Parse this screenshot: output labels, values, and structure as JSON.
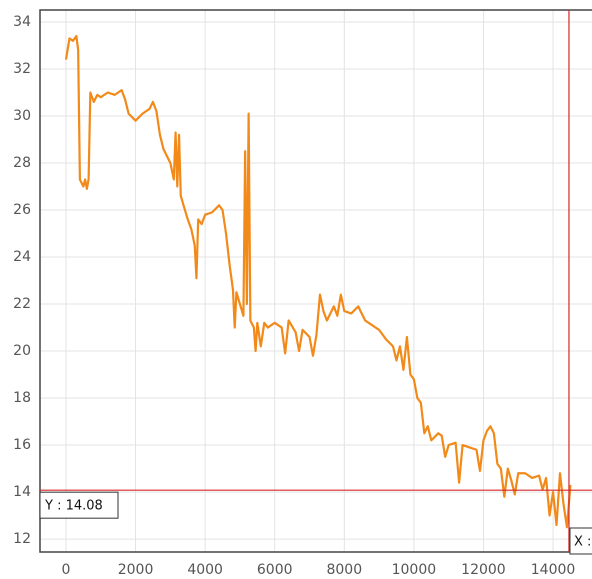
{
  "chart_data": {
    "type": "line",
    "color": "#f28a1a",
    "grid": true,
    "xlim": [
      -747,
      15120
    ],
    "ylim": [
      11.45,
      34.51
    ],
    "xticks": [
      0,
      2000,
      4000,
      6000,
      8000,
      10000,
      12000,
      14000
    ],
    "yticks": [
      12,
      14,
      16,
      18,
      20,
      22,
      24,
      26,
      28,
      30,
      32,
      34
    ],
    "x": [
      0,
      100,
      200,
      300,
      350,
      400,
      500,
      550,
      600,
      650,
      700,
      800,
      900,
      1000,
      1200,
      1400,
      1600,
      1700,
      1800,
      2000,
      2200,
      2400,
      2500,
      2600,
      2700,
      2800,
      2900,
      3000,
      3100,
      3150,
      3200,
      3250,
      3300,
      3400,
      3500,
      3600,
      3700,
      3750,
      3800,
      3900,
      4000,
      4200,
      4400,
      4500,
      4600,
      4700,
      4800,
      4850,
      4900,
      5000,
      5100,
      5150,
      5200,
      5250,
      5300,
      5400,
      5450,
      5500,
      5600,
      5700,
      5800,
      6000,
      6200,
      6300,
      6400,
      6600,
      6700,
      6800,
      7000,
      7100,
      7200,
      7300,
      7400,
      7500,
      7700,
      7800,
      7900,
      8000,
      8200,
      8400,
      8600,
      8800,
      9000,
      9200,
      9400,
      9500,
      9600,
      9700,
      9800,
      9900,
      10000,
      10100,
      10200,
      10300,
      10400,
      10500,
      10700,
      10800,
      10900,
      11000,
      11200,
      11300,
      11400,
      11600,
      11800,
      11900,
      12000,
      12100,
      12200,
      12300,
      12400,
      12500,
      12600,
      12700,
      12800,
      12900,
      13000,
      13200,
      13400,
      13600,
      13700,
      13800,
      13900,
      14000,
      14100,
      14200,
      14300,
      14400,
      14500
    ],
    "values": [
      32.4,
      33.3,
      33.2,
      33.4,
      32.8,
      27.3,
      27.0,
      27.3,
      26.9,
      27.3,
      31.0,
      30.6,
      30.9,
      30.8,
      31.0,
      30.9,
      31.1,
      30.7,
      30.1,
      29.8,
      30.1,
      30.3,
      30.6,
      30.2,
      29.2,
      28.6,
      28.3,
      28.0,
      27.3,
      29.3,
      27.0,
      29.2,
      26.6,
      26.1,
      25.6,
      25.2,
      24.5,
      23.1,
      25.6,
      25.4,
      25.8,
      25.9,
      26.2,
      26.0,
      25.0,
      23.7,
      22.6,
      21.0,
      22.5,
      22.0,
      21.5,
      28.5,
      22.0,
      30.1,
      21.3,
      21.0,
      20.0,
      21.2,
      20.2,
      21.2,
      21.0,
      21.2,
      21.0,
      19.9,
      21.3,
      20.8,
      20.0,
      20.9,
      20.6,
      19.8,
      20.7,
      22.4,
      21.7,
      21.3,
      21.9,
      21.5,
      22.4,
      21.7,
      21.6,
      21.9,
      21.3,
      21.1,
      20.9,
      20.5,
      20.2,
      19.6,
      20.2,
      19.2,
      20.6,
      19.0,
      18.8,
      18.0,
      17.8,
      16.5,
      16.8,
      16.2,
      16.5,
      16.4,
      15.5,
      16.0,
      16.1,
      14.4,
      16.0,
      15.9,
      15.8,
      14.9,
      16.2,
      16.6,
      16.8,
      16.5,
      15.2,
      15.0,
      13.8,
      15.0,
      14.5,
      13.9,
      14.8,
      14.8,
      14.6,
      14.7,
      14.1,
      14.6,
      13.0,
      14.0,
      12.6,
      14.8,
      13.5,
      12.5,
      14.3
    ],
    "crosshair": {
      "color": "#d62728",
      "x": 14458,
      "y": 14.08,
      "x_label": "X :",
      "y_label": "Y : 14.08"
    }
  }
}
